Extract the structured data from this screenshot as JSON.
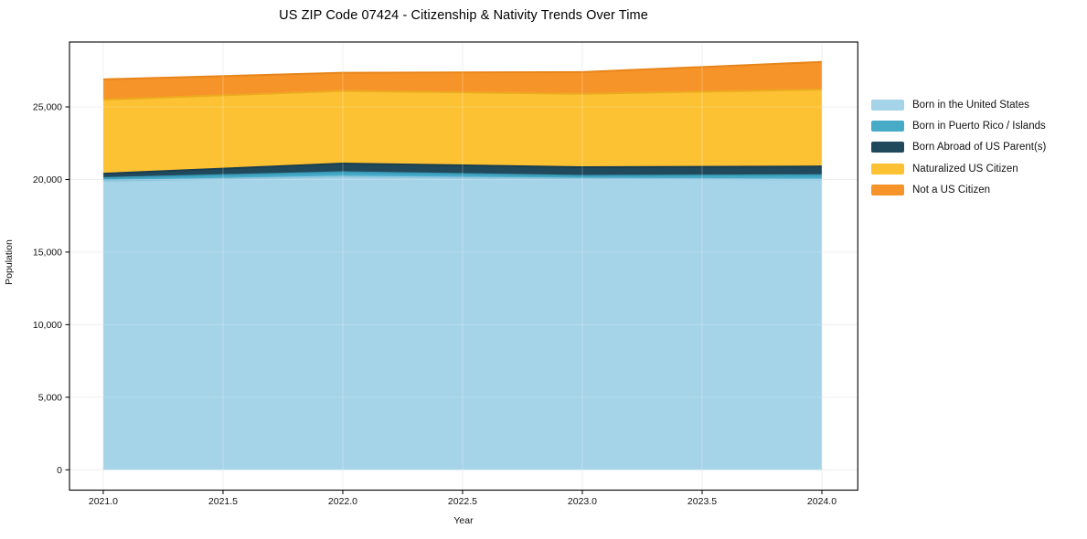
{
  "chart_data": {
    "type": "area",
    "stacked": true,
    "title": "US ZIP Code 07424 - Citizenship & Nativity Trends Over Time",
    "xlabel": "Year",
    "ylabel": "Population",
    "x": [
      2021,
      2022,
      2023,
      2024
    ],
    "series": [
      {
        "name": "Born in the United States",
        "color": "#a5d3e8",
        "edge_color": "#8ec6de",
        "values": [
          19900,
          20200,
          20050,
          20000
        ]
      },
      {
        "name": "Born in Puerto Rico / Islands",
        "color": "#47abc8",
        "edge_color": "#3b9cb9",
        "values": [
          200,
          300,
          200,
          300
        ]
      },
      {
        "name": "Born Abroad of US Parent(s)",
        "color": "#20495c",
        "edge_color": "#1a3e4f",
        "values": [
          300,
          600,
          600,
          600
        ]
      },
      {
        "name": "Naturalized US Citizen",
        "color": "#fcc233",
        "edge_color": "#edaa20",
        "values": [
          5100,
          5000,
          5050,
          5300
        ]
      },
      {
        "name": "Not a US Citizen",
        "color": "#f79429",
        "edge_color": "#e8851a",
        "values": [
          1400,
          1250,
          1500,
          1900
        ]
      }
    ],
    "totals": [
      26900,
      27350,
      27400,
      28100
    ],
    "xlim": [
      2020.859,
      2024.15
    ],
    "ylim": [
      -1400,
      29470
    ],
    "xticks": {
      "values": [
        2021.0,
        2021.5,
        2022.0,
        2022.5,
        2023.0,
        2023.5,
        2024.0
      ],
      "labels": [
        "2021.0",
        "2021.5",
        "2022.0",
        "2022.5",
        "2023.0",
        "2023.5",
        "2024.0"
      ]
    },
    "yticks": {
      "values": [
        0,
        5000,
        10000,
        15000,
        20000,
        25000
      ],
      "labels": [
        "0",
        "5,000",
        "10,000",
        "15,000",
        "20,000",
        "25,000"
      ]
    },
    "grid": true,
    "legend_position": "right-outside",
    "frame_color": "#000000",
    "grid_color": "#e8e8e8"
  }
}
